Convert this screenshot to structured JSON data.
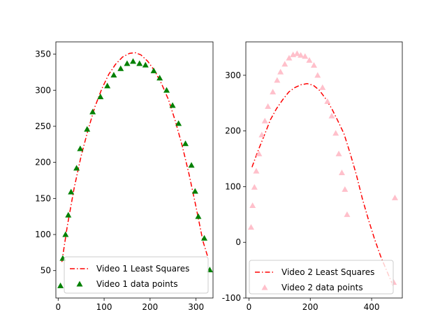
{
  "chart_data": [
    {
      "type": "scatter",
      "xlim": [
        -5,
        337
      ],
      "ylim": [
        12,
        367
      ],
      "xticks": [
        0,
        100,
        200,
        300
      ],
      "yticks": [
        50,
        100,
        150,
        200,
        250,
        300,
        350
      ],
      "grid": false,
      "legend_position": "bottom-right",
      "series": [
        {
          "name": "Video 1 Least Squares",
          "kind": "line",
          "style": "dashdot",
          "color": "#ff0000",
          "points": [
            [
              8,
              62
            ],
            [
              20,
              112
            ],
            [
              35,
              165
            ],
            [
              50,
              209
            ],
            [
              65,
              245
            ],
            [
              80,
              277
            ],
            [
              95,
              302
            ],
            [
              110,
              322
            ],
            [
              125,
              336
            ],
            [
              140,
              346
            ],
            [
              155,
              351
            ],
            [
              168,
              352
            ],
            [
              180,
              349
            ],
            [
              195,
              340
            ],
            [
              210,
              327
            ],
            [
              225,
              309
            ],
            [
              240,
              287
            ],
            [
              255,
              257
            ],
            [
              270,
              223
            ],
            [
              285,
              183
            ],
            [
              300,
              138
            ],
            [
              315,
              91
            ],
            [
              326,
              68
            ]
          ]
        },
        {
          "name": "Video 1 data points",
          "kind": "scatter",
          "marker": "triangle",
          "color": "#008000",
          "points": [
            [
              5,
              29
            ],
            [
              10,
              67
            ],
            [
              16,
              100
            ],
            [
              22,
              127
            ],
            [
              28,
              159
            ],
            [
              40,
              192
            ],
            [
              48,
              219
            ],
            [
              63,
              246
            ],
            [
              75,
              270
            ],
            [
              92,
              291
            ],
            [
              107,
              306
            ],
            [
              121,
              321
            ],
            [
              136,
              330
            ],
            [
              150,
              337
            ],
            [
              163,
              340
            ],
            [
              177,
              337
            ],
            [
              190,
              335
            ],
            [
              208,
              327
            ],
            [
              221,
              317
            ],
            [
              236,
              300
            ],
            [
              249,
              279
            ],
            [
              262,
              254
            ],
            [
              277,
              226
            ],
            [
              290,
              196
            ],
            [
              298,
              160
            ],
            [
              305,
              125
            ],
            [
              318,
              95
            ],
            [
              330,
              51
            ]
          ]
        }
      ]
    },
    {
      "type": "scatter",
      "xlim": [
        -10,
        500
      ],
      "ylim": [
        -100,
        360
      ],
      "xticks": [
        0,
        200,
        400
      ],
      "yticks": [
        -100,
        0,
        100,
        200,
        300
      ],
      "grid": false,
      "legend_position": "bottom-right",
      "series": [
        {
          "name": "Video 2 Least Squares",
          "kind": "line",
          "style": "dashdot",
          "color": "#ff0000",
          "points": [
            [
              10,
              135
            ],
            [
              30,
              165
            ],
            [
              50,
              192
            ],
            [
              70,
              220
            ],
            [
              90,
              240
            ],
            [
              110,
              256
            ],
            [
              130,
              270
            ],
            [
              150,
              278
            ],
            [
              170,
              283
            ],
            [
              190,
              285
            ],
            [
              210,
              282
            ],
            [
              230,
              273
            ],
            [
              250,
              258
            ],
            [
              270,
              240
            ],
            [
              290,
              218
            ],
            [
              310,
              195
            ],
            [
              330,
              160
            ],
            [
              350,
              122
            ],
            [
              370,
              78
            ],
            [
              390,
              40
            ],
            [
              410,
              5
            ],
            [
              430,
              -26
            ],
            [
              450,
              -52
            ],
            [
              470,
              -78
            ]
          ]
        },
        {
          "name": "Video 2 data points",
          "kind": "scatter",
          "marker": "triangle",
          "color": "#ffc0cb",
          "points": [
            [
              7,
              27
            ],
            [
              12,
              66
            ],
            [
              18,
              99
            ],
            [
              24,
              128
            ],
            [
              33,
              159
            ],
            [
              42,
              193
            ],
            [
              52,
              218
            ],
            [
              62,
              244
            ],
            [
              78,
              270
            ],
            [
              92,
              291
            ],
            [
              103,
              306
            ],
            [
              117,
              320
            ],
            [
              131,
              331
            ],
            [
              144,
              337
            ],
            [
              157,
              339
            ],
            [
              169,
              336
            ],
            [
              183,
              334
            ],
            [
              197,
              327
            ],
            [
              212,
              318
            ],
            [
              224,
              300
            ],
            [
              240,
              278
            ],
            [
              256,
              253
            ],
            [
              270,
              227
            ],
            [
              283,
              196
            ],
            [
              293,
              159
            ],
            [
              303,
              125
            ],
            [
              313,
              95
            ],
            [
              320,
              50
            ],
            [
              476,
              80
            ],
            [
              472,
              -72
            ]
          ]
        }
      ]
    }
  ]
}
